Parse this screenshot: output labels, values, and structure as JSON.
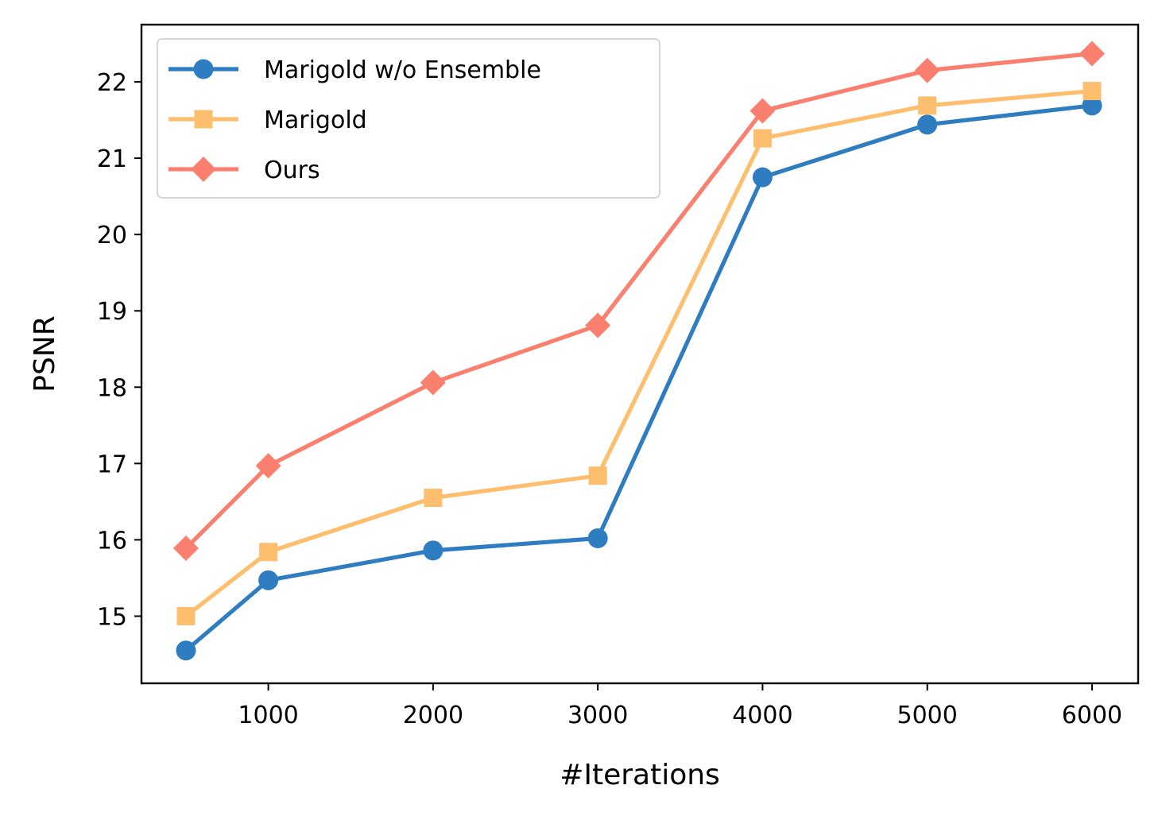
{
  "chart_data": {
    "type": "line",
    "title": "",
    "xlabel": "#Iterations",
    "ylabel": "PSNR",
    "xlim": [
      230,
      6280
    ],
    "ylim": [
      14.12,
      22.75
    ],
    "xticks": [
      1000,
      2000,
      3000,
      4000,
      5000,
      6000
    ],
    "yticks": [
      15,
      16,
      17,
      18,
      19,
      20,
      21,
      22
    ],
    "grid": false,
    "legend_position": "top-left",
    "x": [
      500,
      1000,
      2000,
      3000,
      4000,
      5000,
      6000
    ],
    "series": [
      {
        "name": "Marigold w/o Ensemble",
        "color": "#2f7dc1",
        "marker": "circle",
        "values": [
          14.55,
          15.47,
          15.86,
          16.02,
          20.75,
          21.44,
          21.69
        ]
      },
      {
        "name": "Marigold",
        "color": "#fdbe6e",
        "marker": "square",
        "values": [
          15.0,
          15.84,
          16.55,
          16.84,
          21.26,
          21.69,
          21.88
        ]
      },
      {
        "name": "Ours",
        "color": "#fa7f6f",
        "marker": "diamond",
        "values": [
          15.89,
          16.97,
          18.06,
          18.81,
          21.62,
          22.15,
          22.37
        ]
      }
    ]
  }
}
